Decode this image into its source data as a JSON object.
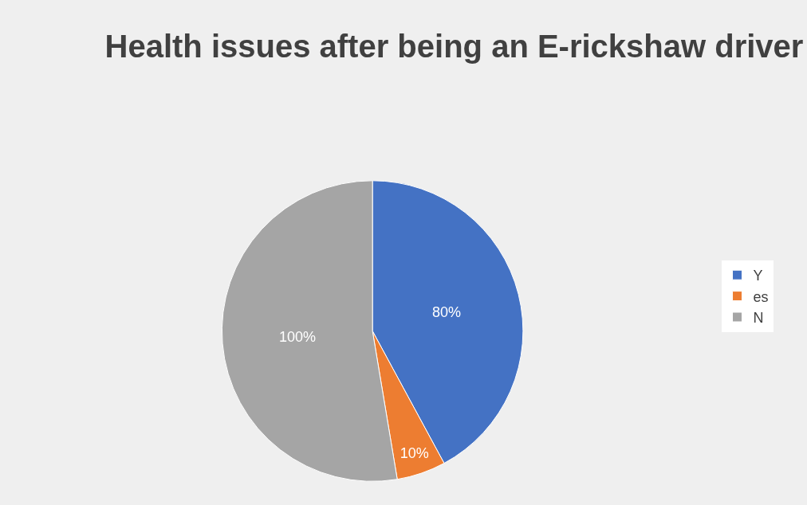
{
  "chart_data": {
    "type": "pie",
    "title": "Health issues after being an E-rickshaw driver",
    "categories": [
      "Y",
      "es",
      "N"
    ],
    "values": [
      80,
      10,
      100
    ],
    "value_labels": [
      "80%",
      "10%",
      "100%"
    ],
    "colors": [
      "#4472c4",
      "#ed7d31",
      "#a5a5a5"
    ],
    "legend": "right"
  }
}
